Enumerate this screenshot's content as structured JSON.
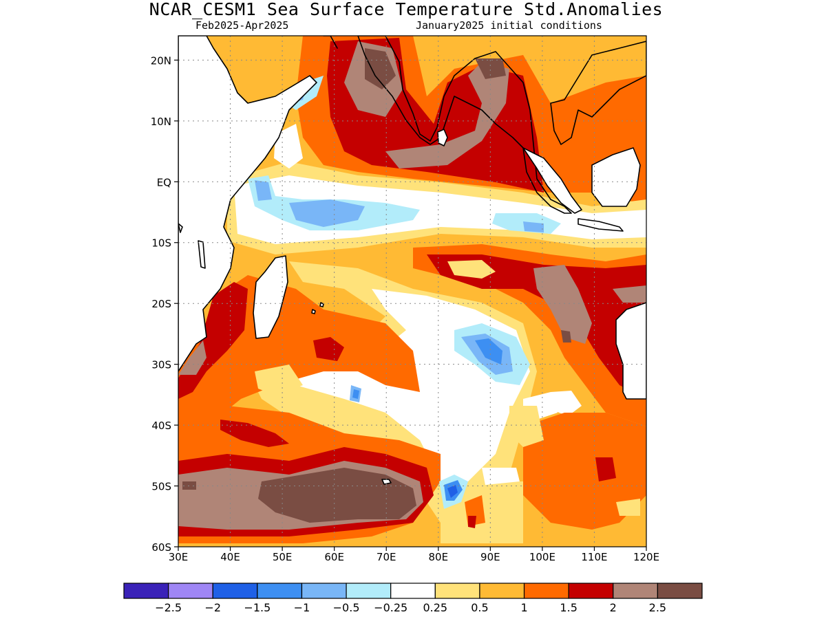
{
  "header": {
    "title": "NCAR_CESM1 Sea Surface Temperature Std.Anomalies",
    "period": "Feb2025-Apr2025",
    "init": "January2025 initial conditions"
  },
  "map": {
    "lon_labels": [
      "30E",
      "40E",
      "50E",
      "60E",
      "70E",
      "80E",
      "90E",
      "100E",
      "110E",
      "120E"
    ],
    "lat_labels": [
      "20N",
      "10N",
      "EQ",
      "10S",
      "20S",
      "30S",
      "40S",
      "50S",
      "60S"
    ],
    "lon_values": [
      30,
      40,
      50,
      60,
      70,
      80,
      90,
      100,
      110,
      120
    ],
    "lat_values": [
      20,
      10,
      0,
      -10,
      -20,
      -30,
      -40,
      -50,
      -60
    ],
    "lon_range": [
      30,
      120
    ],
    "lat_range": [
      -60,
      24
    ],
    "grid": "dotted",
    "projection": "lat-lon"
  },
  "colorbar": {
    "colors": [
      "#3a22b8",
      "#9f86f5",
      "#1f60e6",
      "#3d8ff2",
      "#79b6f7",
      "#b2ecfa",
      "#ffffff",
      "#ffe27a",
      "#ffba34",
      "#ff6a00",
      "#c40000",
      "#b08577",
      "#7a4d43"
    ],
    "labels": [
      "-2.5",
      "-2",
      "-1.5",
      "-1",
      "-0.5",
      "-0.25",
      "0.25",
      "0.5",
      "1",
      "1.5",
      "2",
      "2.5"
    ],
    "boundaries": [
      -2.5,
      -2,
      -1.5,
      -1,
      -0.5,
      -0.25,
      0.25,
      0.5,
      1,
      1.5,
      2,
      2.5
    ]
  }
}
